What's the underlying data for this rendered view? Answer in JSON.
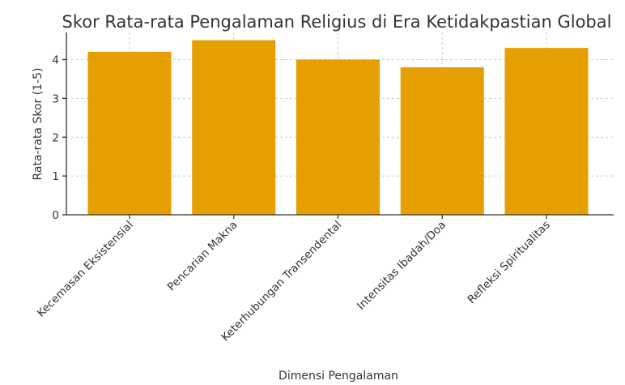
{
  "chart_data": {
    "type": "bar",
    "title": "Skor Rata-rata Pengalaman Religius di Era Ketidakpastian Global",
    "xlabel": "Dimensi Pengalaman",
    "ylabel": "Rata-rata Skor (1-5)",
    "categories": [
      "Kecemasan Eksistensial",
      "Pencarian Makna",
      "Keterhubungan Transendental",
      "Intensitas Ibadah/Doa",
      "Refleksi Spiritualitas"
    ],
    "values": [
      4.2,
      4.5,
      4.0,
      3.8,
      4.3
    ],
    "ylim": [
      0,
      4.7
    ],
    "yticks": [
      0,
      1,
      2,
      3,
      4
    ],
    "grid": true,
    "bar_color": "#e59f00"
  }
}
